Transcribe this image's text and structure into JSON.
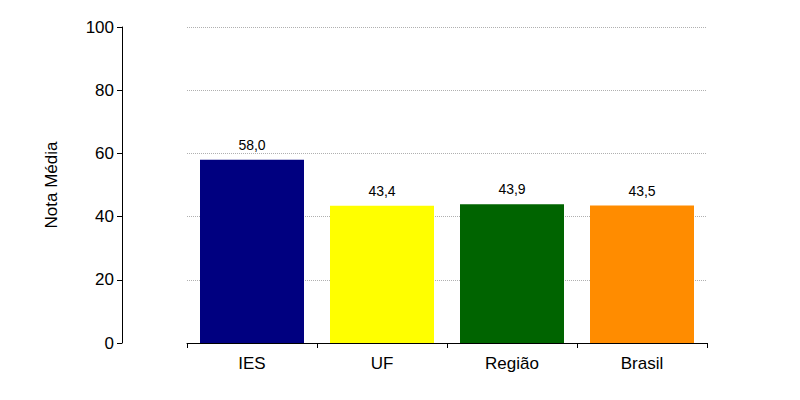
{
  "chart_data": {
    "type": "bar",
    "y_label": "Nota Média",
    "categories": [
      "IES",
      "UF",
      "Região",
      "Brasil"
    ],
    "values": [
      58.0,
      43.4,
      43.9,
      43.5
    ],
    "value_labels": [
      "58,0",
      "43,4",
      "43,9",
      "43,5"
    ],
    "colors": [
      "#000080",
      "#ffff00",
      "#006400",
      "#ff8c00"
    ],
    "ylim": [
      0,
      100
    ],
    "yticks": [
      0,
      20,
      40,
      60,
      80,
      100
    ],
    "grid": true,
    "data_labels": true
  }
}
